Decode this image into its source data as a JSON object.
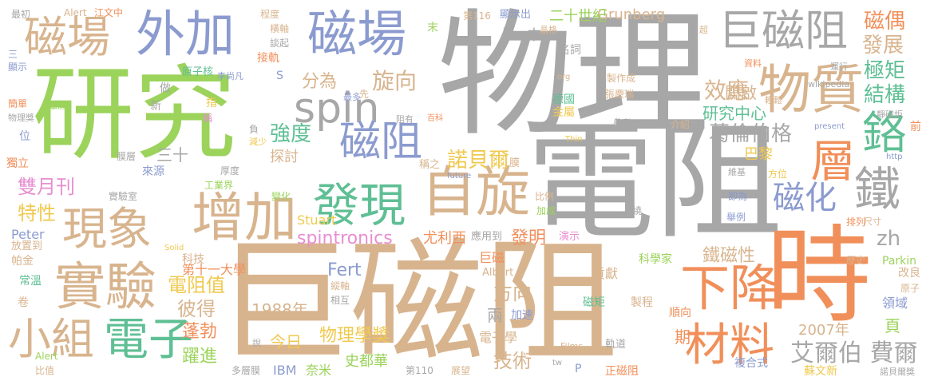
{
  "words": [
    {
      "text": "物理",
      "color": "#a7a7a7"
    },
    {
      "text": "電阻",
      "color": "#a7a7a7"
    },
    {
      "text": "巨磁阻",
      "color": "#d8b48e"
    },
    {
      "text": "研究",
      "color": "#9bd35b"
    },
    {
      "text": "時",
      "color": "#f18f5a"
    },
    {
      "text": "磁場",
      "color": "#d8b48e"
    },
    {
      "text": "外加",
      "color": "#8b9bcf"
    },
    {
      "text": "磁場",
      "color": "#8b9bcf"
    },
    {
      "text": "巨磁阻",
      "color": "#a7a7a7"
    },
    {
      "text": "物質",
      "color": "#d8b48e"
    },
    {
      "text": "spin",
      "color": "#a7a7a7"
    },
    {
      "text": "磁阻",
      "color": "#8b9bcf"
    },
    {
      "text": "自旋",
      "color": "#d8b48e"
    },
    {
      "text": "發現",
      "color": "#5fbf94"
    },
    {
      "text": "現象",
      "color": "#d8b48e"
    },
    {
      "text": "增加",
      "color": "#d8b48e"
    },
    {
      "text": "實驗",
      "color": "#d8b48e"
    },
    {
      "text": "小組",
      "color": "#d8b48e"
    },
    {
      "text": "電子",
      "color": "#5fbf94"
    },
    {
      "text": "下降",
      "color": "#f18f5a"
    },
    {
      "text": "材料",
      "color": "#f18f5a"
    },
    {
      "text": "鐵",
      "color": "#a7a7a7"
    },
    {
      "text": "層",
      "color": "#f18f5a"
    },
    {
      "text": "鉻",
      "color": "#5fbf94"
    },
    {
      "text": "磁化",
      "color": "#8b9bcf"
    },
    {
      "text": "spintronics",
      "color": "#e88ed1"
    },
    {
      "text": "艾爾伯 費爾",
      "color": "#a7a7a7"
    },
    {
      "text": "Fert",
      "color": "#8b9bcf"
    },
    {
      "text": "Grunberg",
      "color": "#d8b48e"
    },
    {
      "text": "磁偶",
      "color": "#f18f5a"
    },
    {
      "text": "發展",
      "color": "#d8b48e"
    },
    {
      "text": "極矩",
      "color": "#5fbf94"
    },
    {
      "text": "結構",
      "color": "#5fbf94"
    },
    {
      "text": "效應",
      "color": "#d8b48e"
    },
    {
      "text": "開啟",
      "color": "#d8b48e"
    },
    {
      "text": "研究中心",
      "color": "#5fbf94"
    },
    {
      "text": "葛倫伯格",
      "color": "#a7a7a7"
    },
    {
      "text": "強度",
      "color": "#5fbf94"
    },
    {
      "text": "探討",
      "color": "#d8b48e"
    },
    {
      "text": "諾貝爾",
      "color": "#f0c94f"
    },
    {
      "text": "分為",
      "color": "#d8b48e"
    },
    {
      "text": "旋向",
      "color": "#d8b48e"
    },
    {
      "text": "雙月刊",
      "color": "#e88ed1"
    },
    {
      "text": "特性",
      "color": "#f0c94f"
    },
    {
      "text": "電阻值",
      "color": "#f0c94f"
    },
    {
      "text": "彼得",
      "color": "#d8b48e"
    },
    {
      "text": "方向",
      "color": "#d8b48e"
    },
    {
      "text": "技術",
      "color": "#d8b48e"
    },
    {
      "text": "鐵磁性",
      "color": "#d8b48e"
    },
    {
      "text": "zh",
      "color": "#a7a7a7"
    },
    {
      "text": "1988年",
      "color": "#d8b48e"
    },
    {
      "text": "蓬勃",
      "color": "#f18f5a"
    },
    {
      "text": "躍進",
      "color": "#9bd35b"
    },
    {
      "text": "2007年",
      "color": "#d8b48e"
    },
    {
      "text": "物理學獎",
      "color": "#f0c94f"
    },
    {
      "text": "今日",
      "color": "#f0c94f"
    },
    {
      "text": "二十世紀",
      "color": "#9bd35b"
    },
    {
      "text": "中",
      "color": "#a7a7a7"
    },
    {
      "text": "三十",
      "color": "#a7a7a7"
    },
    {
      "text": "Stuart",
      "color": "#f0c94f"
    },
    {
      "text": "尤利西",
      "color": "#f18f5a"
    },
    {
      "text": "發明",
      "color": "#f18f5a"
    },
    {
      "text": "巴黎",
      "color": "#f0c94f"
    },
    {
      "text": "IBM",
      "color": "#8b9bcf"
    },
    {
      "text": "奈米",
      "color": "#9bd35b"
    },
    {
      "text": "史都華",
      "color": "#9bd35b"
    },
    {
      "text": "Peter",
      "color": "#8b9bcf"
    },
    {
      "text": "第十一大學",
      "color": "#f18f5a"
    },
    {
      "text": "巨磁",
      "color": "#f18f5a"
    },
    {
      "text": "兩",
      "color": "#a7a7a7"
    },
    {
      "text": "電子學",
      "color": "#d8b48e"
    },
    {
      "text": "期",
      "color": "#f18f5a"
    },
    {
      "text": "頁",
      "color": "#9bd35b"
    },
    {
      "text": "領域",
      "color": "#8b9bcf"
    },
    {
      "text": "改良",
      "color": "#d8b48e"
    },
    {
      "text": "Parkin",
      "color": "#9bd35b"
    },
    {
      "text": "貢獻",
      "color": "#d8b48e"
    },
    {
      "text": "科學家",
      "color": "#9bd35b"
    },
    {
      "text": "順向",
      "color": "#f18f5a"
    },
    {
      "text": "製程",
      "color": "#d8b48e"
    },
    {
      "text": "正磁阻",
      "color": "#f18f5a"
    },
    {
      "text": "複合式",
      "color": "#8b9bcf"
    },
    {
      "text": "蘇文新",
      "color": "#f0c94f"
    },
    {
      "text": "磁矩",
      "color": "#5fbf94"
    },
    {
      "text": "加速",
      "color": "#8b9bcf"
    },
    {
      "text": "原子核",
      "color": "#5fbf94"
    },
    {
      "text": "接軌",
      "color": "#f18f5a"
    },
    {
      "text": "名詞",
      "color": "#a7a7a7"
    },
    {
      "text": "德國",
      "color": "#5fbf94"
    },
    {
      "text": "金屬",
      "color": "#f0c94f"
    },
    {
      "text": "第116",
      "color": "#d8b48e"
    },
    {
      "text": "顯示出",
      "color": "#8b9bcf"
    },
    {
      "text": "最初",
      "color": "#a7a7a7"
    },
    {
      "text": "Alert",
      "color": "#d8b48e"
    },
    {
      "text": "江文中",
      "color": "#f18f5a"
    },
    {
      "text": "程度",
      "color": "#d8b48e"
    },
    {
      "text": "顯示",
      "color": "#8b9bcf"
    },
    {
      "text": "簡單",
      "color": "#f18f5a"
    },
    {
      "text": "磁區",
      "color": "#9bd35b"
    },
    {
      "text": "物理獎",
      "color": "#a7a7a7"
    },
    {
      "text": "獨立",
      "color": "#f18f5a"
    },
    {
      "text": "位",
      "color": "#8b9bcf"
    },
    {
      "text": "膜層",
      "color": "#a7a7a7"
    },
    {
      "text": "厚度",
      "color": "#a7a7a7"
    },
    {
      "text": "來源",
      "color": "#8b9bcf"
    },
    {
      "text": "工業界",
      "color": "#9bd35b"
    },
    {
      "text": "實驗室",
      "color": "#a7a7a7"
    },
    {
      "text": "放置到",
      "color": "#d8b48e"
    },
    {
      "text": "帕金",
      "color": "#d8b48e"
    },
    {
      "text": "常溫",
      "color": "#5fbf94"
    },
    {
      "text": "科技",
      "color": "#d8b48e"
    },
    {
      "text": "應用到",
      "color": "#a7a7a7"
    },
    {
      "text": "演示",
      "color": "#e88ed1"
    },
    {
      "text": "Albert",
      "color": "#d8b48e"
    },
    {
      "text": "相互",
      "color": "#a7a7a7"
    },
    {
      "text": "縱軸",
      "color": "#d8b48e"
    },
    {
      "text": "多層膜",
      "color": "#a7a7a7"
    },
    {
      "text": "第110",
      "color": "#a7a7a7"
    },
    {
      "text": "展望",
      "color": "#d8b48e"
    },
    {
      "text": "軌道",
      "color": "#a7a7a7"
    },
    {
      "text": "Films",
      "color": "#d8b48e"
    },
    {
      "text": "諾貝爾獎",
      "color": "#a7a7a7"
    },
    {
      "text": "比值",
      "color": "#d8b48e"
    },
    {
      "text": "Alert",
      "color": "#9bd35b"
    },
    {
      "text": "資料",
      "color": "#f18f5a"
    },
    {
      "text": "運行",
      "color": "#a7a7a7"
    },
    {
      "text": "wikipedia",
      "color": "#a7a7a7"
    },
    {
      "text": "張慶瑞",
      "color": "#d8b48e"
    },
    {
      "text": "輕鬆",
      "color": "#d8b48e"
    },
    {
      "text": "靜磁炬",
      "color": "#a7a7a7"
    },
    {
      "text": "參考",
      "color": "#a7a7a7"
    },
    {
      "text": "介紹",
      "color": "#d8b48e"
    },
    {
      "text": "present",
      "color": "#8b9bcf"
    },
    {
      "text": "Thin",
      "color": "#f0c94f"
    },
    {
      "text": "future",
      "color": "#8b9bcf"
    },
    {
      "text": "http",
      "color": "#8b9bcf"
    },
    {
      "text": "Solid",
      "color": "#f0c94f"
    },
    {
      "text": "歷史",
      "color": "#d8b48e"
    },
    {
      "text": "原子",
      "color": "#d8b48e"
    },
    {
      "text": "排列",
      "color": "#f18f5a"
    },
    {
      "text": "尺寸",
      "color": "#d8b48e"
    },
    {
      "text": "舉例",
      "color": "#8b9bcf"
    },
    {
      "text": "即為",
      "color": "#8b9bcf"
    },
    {
      "text": "維基",
      "color": "#a7a7a7"
    },
    {
      "text": "方位",
      "color": "#f0c94f"
    },
    {
      "text": "前",
      "color": "#f18f5a"
    },
    {
      "text": "減少",
      "color": "#f0c94f"
    },
    {
      "text": "變化",
      "color": "#9bd35b"
    },
    {
      "text": "稱之",
      "color": "#d8b48e"
    },
    {
      "text": "膜",
      "color": "#d8b48e"
    },
    {
      "text": "比例",
      "color": "#d8b48e"
    },
    {
      "text": "加成",
      "color": "#9bd35b"
    },
    {
      "text": "繞",
      "color": "#a7a7a7"
    },
    {
      "text": "說",
      "color": "#a7a7a7"
    },
    {
      "text": "卷",
      "color": "#d8b48e"
    },
    {
      "text": "末",
      "color": "#9bd35b"
    },
    {
      "text": "三",
      "color": "#8b9bcf"
    },
    {
      "text": "做",
      "color": "#a7a7a7"
    },
    {
      "text": "新",
      "color": "#a7a7a7"
    },
    {
      "text": "指",
      "color": "#f0c94f"
    },
    {
      "text": "先",
      "color": "#d8b48e"
    },
    {
      "text": "阻有",
      "color": "#a7a7a7"
    },
    {
      "text": "百科",
      "color": "#f18f5a"
    },
    {
      "text": "稱",
      "color": "#e88ed1"
    },
    {
      "text": "負",
      "color": "#a7a7a7"
    },
    {
      "text": "最多",
      "color": "#8b9bcf"
    },
    {
      "text": "李尚凡",
      "color": "#8b9bcf"
    },
    {
      "text": "S",
      "color": "#8b9bcf"
    },
    {
      "text": "橫軸",
      "color": "#d8b48e"
    },
    {
      "text": "談起",
      "color": "#a7a7a7"
    },
    {
      "text": "年",
      "color": "#a7a7a7"
    },
    {
      "text": "晶格",
      "color": "#d8b48e"
    },
    {
      "text": "超",
      "color": "#d8b48e"
    },
    {
      "text": "org",
      "color": "#d8b48e"
    },
    {
      "text": "製作成",
      "color": "#d8b48e"
    },
    {
      "text": "P",
      "color": "#8b9bcf"
    },
    {
      "text": "tw",
      "color": "#a7a7a7"
    }
  ]
}
